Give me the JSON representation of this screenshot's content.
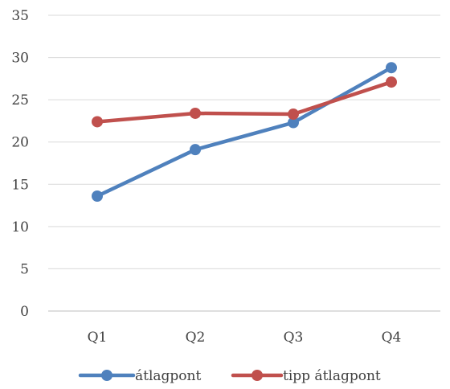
{
  "chart_data": {
    "type": "line",
    "categories": [
      "Q1",
      "Q2",
      "Q3",
      "Q4"
    ],
    "series": [
      {
        "name": "átlagpont",
        "color": "#4F81BD",
        "values": [
          13.6,
          19.1,
          22.3,
          28.8
        ]
      },
      {
        "name": "tipp átlagpont",
        "color": "#C0504D",
        "values": [
          22.4,
          23.4,
          23.3,
          27.1
        ]
      }
    ],
    "ylim": [
      0,
      35
    ],
    "yticks": [
      "0",
      "5",
      "10",
      "15",
      "20",
      "25",
      "30",
      "35"
    ],
    "grid": true,
    "legend_position": "bottom",
    "colors": {
      "grid": "#d9d9d9",
      "text": "#404040"
    }
  }
}
